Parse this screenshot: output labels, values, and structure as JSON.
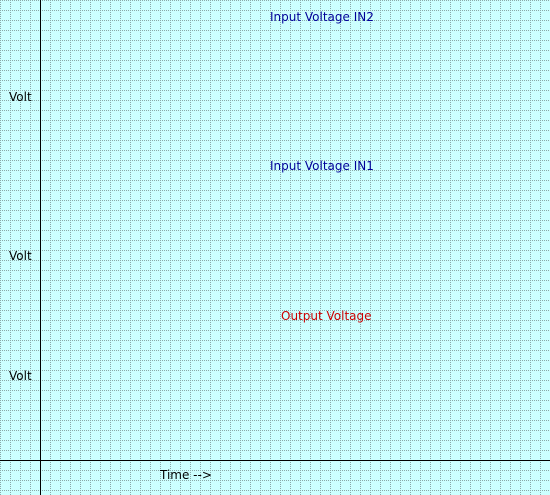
{
  "scope": {
    "background": "#ccffff",
    "grid_dot_color": "#8aa8a8",
    "axis_color": "#000000",
    "grid": true
  },
  "y_labels": [
    "Volt",
    "Volt",
    "Volt"
  ],
  "channels": [
    {
      "label": "Input Voltage IN2",
      "color": "#000099"
    },
    {
      "label": "Input Voltage IN1",
      "color": "#000099"
    },
    {
      "label": "Output Voltage",
      "color": "#cc0000"
    }
  ],
  "x_label": "Time -->"
}
